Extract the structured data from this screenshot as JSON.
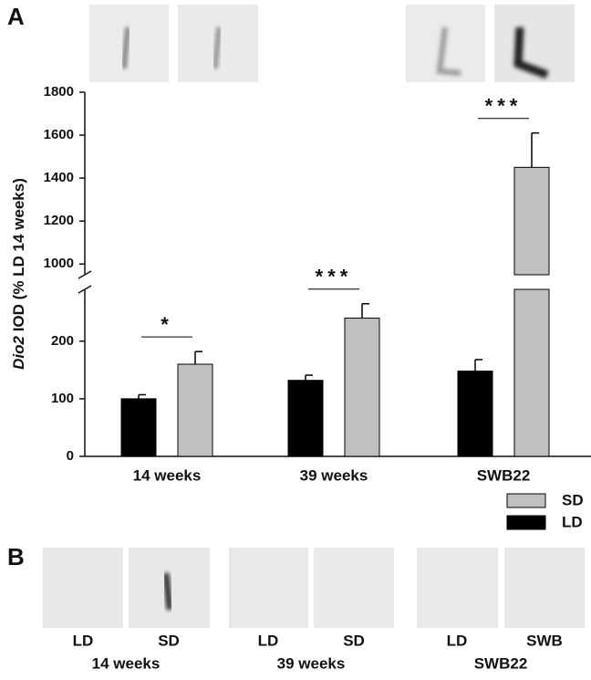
{
  "panel_labels": [
    "A",
    "B"
  ],
  "chart_data": {
    "type": "bar",
    "y_label": [
      "Dio2",
      "IOD (% LD 14 weeks)"
    ],
    "categories": [
      "14 weeks",
      "39 weeks",
      "SWB22"
    ],
    "series": [
      {
        "name": "LD",
        "color": "#000000",
        "values": [
          100,
          132,
          148
        ],
        "errors": [
          7,
          9,
          20
        ]
      },
      {
        "name": "SD",
        "color": "#c0c0c0",
        "values": [
          160,
          240,
          1450
        ],
        "errors": [
          22,
          25,
          160
        ]
      }
    ],
    "annotations": [
      "*",
      "***",
      "***"
    ],
    "ylim": [
      0,
      1800
    ],
    "ysegments": [
      {
        "ylim": [
          0,
          290
        ],
        "yticks": [
          0,
          100,
          200
        ]
      },
      {
        "ylim": [
          950,
          1800
        ],
        "yticks": [
          1000,
          1200,
          1400,
          1600,
          1800
        ]
      }
    ],
    "legend": "bottom-right"
  },
  "panel_b": [
    {
      "label": "14 weeks",
      "images": [
        "LD",
        "SD"
      ]
    },
    {
      "label": "39 weeks",
      "images": [
        "LD",
        "SD"
      ]
    },
    {
      "label": "SWB22",
      "images": [
        "LD",
        "SWB"
      ]
    }
  ]
}
